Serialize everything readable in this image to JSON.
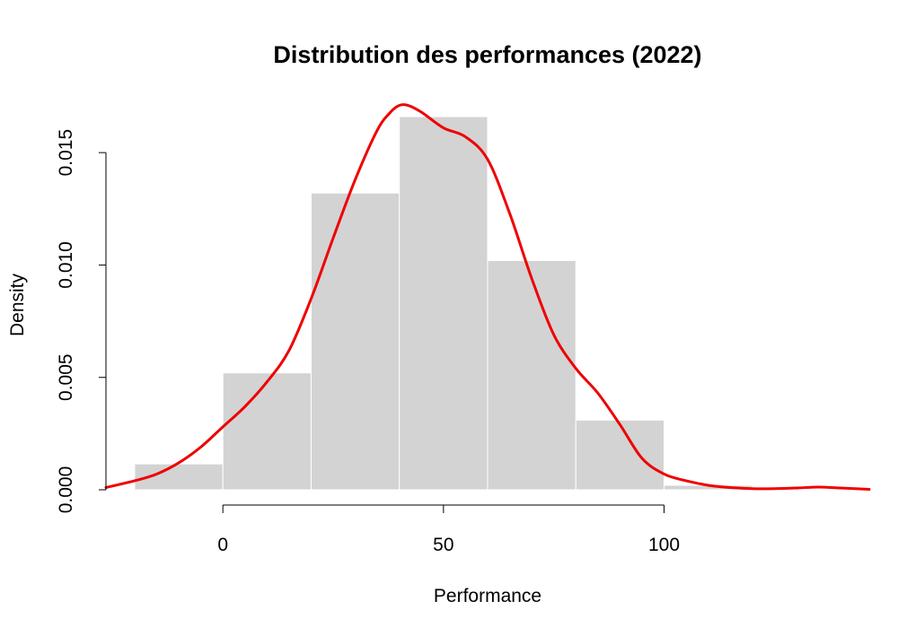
{
  "chart_data": {
    "type": "bar",
    "title": "Distribution des performances (2022)",
    "xlabel": "Performance",
    "ylabel": "Density",
    "xlim": [
      -26.5,
      146.5
    ],
    "ylim": [
      0,
      0.0172
    ],
    "x_ticks": [
      0,
      50,
      100
    ],
    "x_tick_labels": [
      "0",
      "50",
      "100"
    ],
    "y_ticks": [
      0,
      0.005,
      0.01,
      0.015
    ],
    "y_tick_labels": [
      "0.000",
      "0.005",
      "0.010",
      "0.015"
    ],
    "grid": false,
    "series": [
      {
        "type": "histogram",
        "color": "#d3d3d3",
        "bins": [
          {
            "start": -20,
            "end": 0,
            "density": 0.00115
          },
          {
            "start": 0,
            "end": 20,
            "density": 0.0052
          },
          {
            "start": 20,
            "end": 40,
            "density": 0.0132
          },
          {
            "start": 40,
            "end": 60,
            "density": 0.0166
          },
          {
            "start": 60,
            "end": 80,
            "density": 0.0102
          },
          {
            "start": 80,
            "end": 100,
            "density": 0.0031
          },
          {
            "start": 100,
            "end": 120,
            "density": 0.0002
          }
        ]
      },
      {
        "type": "line",
        "color": "#ee0000",
        "x": [
          -26.5,
          -20,
          -15,
          -10,
          -5,
          0,
          5,
          10,
          15,
          20,
          25,
          30,
          35,
          38,
          40,
          42,
          45,
          50,
          55,
          60,
          65,
          70,
          75,
          80,
          85,
          90,
          95,
          100,
          105,
          110,
          115,
          120,
          125,
          130,
          135,
          140,
          146.5
        ],
        "y": [
          0.0001,
          0.0004,
          0.0007,
          0.0012,
          0.0019,
          0.0028,
          0.0037,
          0.0048,
          0.0062,
          0.0085,
          0.0112,
          0.0138,
          0.016,
          0.0168,
          0.0171,
          0.0171,
          0.0168,
          0.0161,
          0.0157,
          0.0147,
          0.0123,
          0.0094,
          0.0069,
          0.0054,
          0.0043,
          0.0029,
          0.0014,
          0.0007,
          0.0004,
          0.0002,
          0.0001,
          5e-05,
          5e-05,
          8e-05,
          0.00012,
          8e-05,
          2e-05
        ]
      }
    ]
  }
}
